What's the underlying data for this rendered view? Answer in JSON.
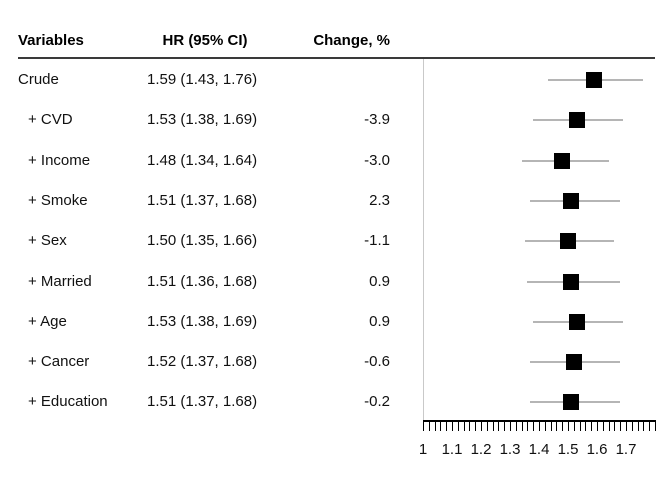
{
  "figure": {
    "background": "#ffffff"
  },
  "table": {
    "headers": {
      "variables": "Variables",
      "hr_ci": "HR (95% CI)",
      "change": "Change, %"
    },
    "rows": [
      {
        "variable": "Crude",
        "hr_ci": "1.59 (1.43, 1.76)",
        "change": "",
        "indent": false
      },
      {
        "variable": "+ CVD",
        "hr_ci": "1.53 (1.38, 1.69)",
        "change": "-3.9",
        "indent": true
      },
      {
        "variable": "+ Income",
        "hr_ci": "1.48 (1.34, 1.64)",
        "change": "-3.0",
        "indent": true
      },
      {
        "variable": "+ Smoke",
        "hr_ci": "1.51 (1.37, 1.68)",
        "change": "2.3",
        "indent": true
      },
      {
        "variable": "+ Sex",
        "hr_ci": "1.50 (1.35, 1.66)",
        "change": "-1.1",
        "indent": true
      },
      {
        "variable": "+ Married",
        "hr_ci": "1.51 (1.36, 1.68)",
        "change": "0.9",
        "indent": true
      },
      {
        "variable": "+ Age",
        "hr_ci": "1.53 (1.38, 1.69)",
        "change": "0.9",
        "indent": true
      },
      {
        "variable": "+ Cancer",
        "hr_ci": "1.52 (1.37, 1.68)",
        "change": "-0.6",
        "indent": true
      },
      {
        "variable": "+ Education",
        "hr_ci": "1.51 (1.37, 1.68)",
        "change": "-0.2",
        "indent": true
      }
    ]
  },
  "chart_data": {
    "type": "forest",
    "orientation": "horizontal",
    "title": "",
    "xlabel": "",
    "points": [
      {
        "label": "Crude",
        "hr": 1.59,
        "ci_low": 1.43,
        "ci_high": 1.76,
        "change_pct": null
      },
      {
        "label": "+ CVD",
        "hr": 1.53,
        "ci_low": 1.38,
        "ci_high": 1.69,
        "change_pct": -3.9
      },
      {
        "label": "+ Income",
        "hr": 1.48,
        "ci_low": 1.34,
        "ci_high": 1.64,
        "change_pct": -3.0
      },
      {
        "label": "+ Smoke",
        "hr": 1.51,
        "ci_low": 1.37,
        "ci_high": 1.68,
        "change_pct": 2.3
      },
      {
        "label": "+ Sex",
        "hr": 1.5,
        "ci_low": 1.35,
        "ci_high": 1.66,
        "change_pct": -1.1
      },
      {
        "label": "+ Married",
        "hr": 1.51,
        "ci_low": 1.36,
        "ci_high": 1.68,
        "change_pct": 0.9
      },
      {
        "label": "+ Age",
        "hr": 1.53,
        "ci_low": 1.38,
        "ci_high": 1.69,
        "change_pct": 0.9
      },
      {
        "label": "+ Cancer",
        "hr": 1.52,
        "ci_low": 1.37,
        "ci_high": 1.68,
        "change_pct": -0.6
      },
      {
        "label": "+ Education",
        "hr": 1.51,
        "ci_low": 1.37,
        "ci_high": 1.68,
        "change_pct": -0.2
      }
    ],
    "xlim": [
      1,
      1.8
    ],
    "x_major_ticks": [
      1,
      1.1,
      1.2,
      1.3,
      1.4,
      1.5,
      1.6,
      1.7
    ],
    "x_major_tick_labels": [
      "1",
      "1.1",
      "1.2",
      "1.3",
      "1.4",
      "1.5",
      "1.6",
      "1.7"
    ],
    "x_minor_tick_step": 0.02,
    "grid": false,
    "legend": false,
    "colors": {
      "marker": "#000000",
      "ci_line": "#b5b5b5",
      "reference_line": "#c9c9c9",
      "axis": "#000000",
      "header_rule": "#3a3a3a",
      "text": "#000000"
    }
  }
}
